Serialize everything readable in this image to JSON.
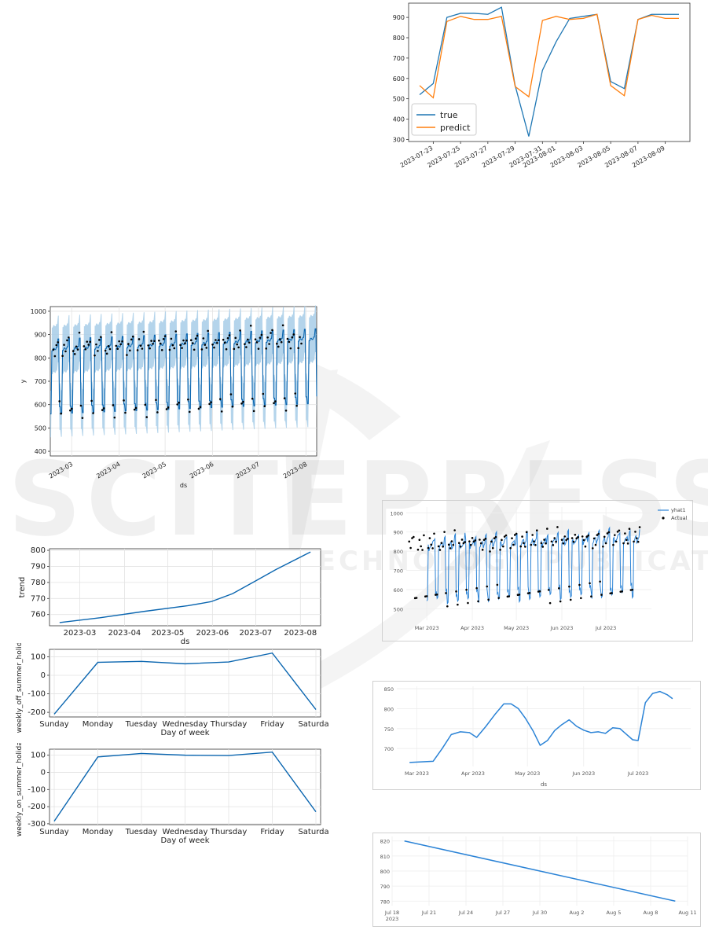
{
  "chart_data": [
    {
      "id": "true-vs-predict",
      "type": "line",
      "x": [
        "2023-07-22",
        "2023-07-23",
        "2023-07-24",
        "2023-07-25",
        "2023-07-26",
        "2023-07-27",
        "2023-07-28",
        "2023-07-29",
        "2023-07-30",
        "2023-07-31",
        "2023-08-01",
        "2023-08-02",
        "2023-08-03",
        "2023-08-04",
        "2023-08-05",
        "2023-08-06",
        "2023-08-07",
        "2023-08-08",
        "2023-08-09",
        "2023-08-10"
      ],
      "x_tick_labels": [
        "2023-07-23",
        "2023-07-25",
        "2023-07-27",
        "2023-07-29",
        "2023-07-31",
        "2023-08-01",
        "2023-08-03",
        "2023-08-05",
        "2023-08-07",
        "2023-08-09"
      ],
      "series": [
        {
          "name": "true",
          "color": "#1f77b4",
          "values": [
            520,
            575,
            900,
            920,
            920,
            915,
            950,
            565,
            315,
            640,
            780,
            895,
            905,
            915,
            585,
            550,
            890,
            915,
            915,
            915
          ]
        },
        {
          "name": "predict",
          "color": "#ff7f0e",
          "values": [
            565,
            505,
            880,
            905,
            890,
            890,
            905,
            560,
            510,
            885,
            905,
            890,
            895,
            915,
            565,
            515,
            890,
            910,
            895,
            895
          ]
        }
      ],
      "yticks": [
        300,
        400,
        500,
        600,
        700,
        800,
        900
      ],
      "ylim": [
        290,
        970
      ],
      "legend": "lower-left",
      "grid": false
    },
    {
      "id": "forecast-ci",
      "type": "line",
      "x_tick_labels": [
        "2023-03",
        "2023-04",
        "2023-05",
        "2023-06",
        "2023-07",
        "2023-08"
      ],
      "yticks": [
        400,
        500,
        600,
        700,
        800,
        900,
        1000
      ],
      "ylim": [
        380,
        1020
      ],
      "xrange": [
        "2023-02-15",
        "2023-08-08"
      ],
      "xlabel": "ds",
      "ylabel": "y",
      "line_color": "#0b66b0",
      "band_color": "#a7cde8",
      "grid": true
    },
    {
      "id": "trend",
      "type": "line",
      "x": [
        "2023-02-15",
        "2023-03-15",
        "2023-04-15",
        "2023-05-15",
        "2023-05-31",
        "2023-06-15",
        "2023-07-01",
        "2023-07-15",
        "2023-08-08"
      ],
      "values": [
        755,
        758,
        762,
        765.5,
        768,
        773,
        781,
        788,
        799
      ],
      "x_tick_labels": [
        "2023-03",
        "2023-04",
        "2023-05",
        "2023-06",
        "2023-07",
        "2023-08"
      ],
      "yticks": [
        760,
        770,
        780,
        790,
        800
      ],
      "ylim": [
        753,
        801
      ],
      "xlabel": "ds",
      "ylabel": "trend",
      "grid": true
    },
    {
      "id": "weekly-off",
      "type": "line",
      "categories": [
        "Sunday",
        "Monday",
        "Tuesday",
        "Wednesday",
        "Thursday",
        "Friday",
        "Saturday"
      ],
      "values": [
        -210,
        70,
        75,
        62,
        72,
        120,
        -185
      ],
      "yticks": [
        -200,
        -100,
        0,
        100
      ],
      "ylim": [
        -225,
        140
      ],
      "xlabel": "Day of week",
      "ylabel": "weekly_off_summer_holiday",
      "grid": true
    },
    {
      "id": "weekly-on",
      "type": "line",
      "categories": [
        "Sunday",
        "Monday",
        "Tuesday",
        "Wednesday",
        "Thursday",
        "Friday",
        "Saturday"
      ],
      "values": [
        -285,
        90,
        110,
        100,
        98,
        118,
        -230
      ],
      "yticks": [
        -300,
        -200,
        -100,
        0,
        100
      ],
      "ylim": [
        -305,
        135
      ],
      "xlabel": "Day of week",
      "ylabel": "weekly_on_summer_holiday",
      "grid": true
    },
    {
      "id": "yhat-actual",
      "type": "line",
      "x_tick_labels": [
        "Mar 2023",
        "Apr 2023",
        "May 2023",
        "Jun 2023",
        "Jul 2023"
      ],
      "yticks": [
        500,
        600,
        700,
        800,
        900,
        1000
      ],
      "ylim": [
        440,
        1030
      ],
      "xrange": [
        "2023-02-15",
        "2023-08-01"
      ],
      "series": [
        {
          "name": "yhat1",
          "color": "#2b83d6"
        },
        {
          "name": "Actual",
          "color": "#000000"
        }
      ],
      "legend": "top-right",
      "grid": true
    },
    {
      "id": "trend-neural",
      "type": "line",
      "x": [
        "2023-02-25",
        "2023-03-10",
        "2023-03-15",
        "2023-03-20",
        "2023-03-25",
        "2023-03-30",
        "2023-04-03",
        "2023-04-08",
        "2023-04-13",
        "2023-04-18",
        "2023-04-22",
        "2023-04-26",
        "2023-04-30",
        "2023-05-04",
        "2023-05-08",
        "2023-05-12",
        "2023-05-16",
        "2023-05-20",
        "2023-05-24",
        "2023-05-28",
        "2023-06-01",
        "2023-06-05",
        "2023-06-09",
        "2023-06-13",
        "2023-06-17",
        "2023-06-21",
        "2023-06-24",
        "2023-06-28",
        "2023-07-01",
        "2023-07-05",
        "2023-07-09",
        "2023-07-13",
        "2023-07-17",
        "2023-07-20"
      ],
      "values": [
        665,
        668,
        700,
        735,
        742,
        740,
        728,
        755,
        785,
        812,
        812,
        800,
        775,
        745,
        708,
        720,
        745,
        760,
        772,
        756,
        746,
        740,
        742,
        738,
        752,
        750,
        738,
        722,
        720,
        815,
        838,
        843,
        835,
        825
      ],
      "x_tick_labels": [
        "Mar 2023",
        "Apr 2023",
        "May 2023",
        "Jun 2023",
        "Jul 2023"
      ],
      "yticks": [
        700,
        750,
        800,
        850
      ],
      "ylim": [
        655,
        856
      ],
      "xlabel": "ds",
      "grid": true
    },
    {
      "id": "trend-future",
      "type": "line",
      "x": [
        "2023-07-19",
        "2023-08-10"
      ],
      "values": [
        820,
        780
      ],
      "x_tick_labels": [
        "Jul 18\n2023",
        "Jul 21",
        "Jul 24",
        "Jul 27",
        "Jul 30",
        "Aug 2",
        "Aug 5",
        "Aug 8",
        "Aug 11"
      ],
      "yticks": [
        780,
        790,
        800,
        810,
        820
      ],
      "ylim": [
        777,
        823
      ],
      "grid": true
    }
  ]
}
